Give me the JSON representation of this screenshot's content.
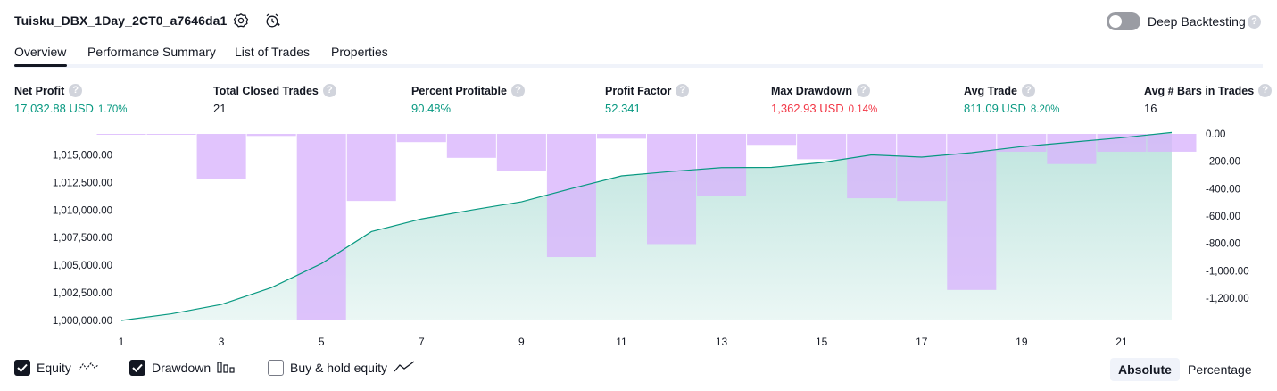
{
  "header": {
    "strategy_title": "Tuisku_DBX_1Day_2CT0_a7646da1",
    "deep_backtesting_label": "Deep Backtesting",
    "help_glyph": "?"
  },
  "tabs": [
    {
      "label": "Overview",
      "active": true
    },
    {
      "label": "Performance Summary",
      "active": false
    },
    {
      "label": "List of Trades",
      "active": false
    },
    {
      "label": "Properties",
      "active": false
    }
  ],
  "metrics": [
    {
      "label": "Net Profit",
      "value": "17,032.88 USD",
      "pct": "1.70%",
      "color": "#089981"
    },
    {
      "label": "Total Closed Trades",
      "value": "21",
      "pct": "",
      "color": "#131722"
    },
    {
      "label": "Percent Profitable",
      "value": "90.48%",
      "pct": "",
      "color": "#089981"
    },
    {
      "label": "Profit Factor",
      "value": "52.341",
      "pct": "",
      "color": "#089981"
    },
    {
      "label": "Max Drawdown",
      "value": "1,362.93 USD",
      "pct": "0.14%",
      "color": "#f23645"
    },
    {
      "label": "Avg Trade",
      "value": "811.09 USD",
      "pct": "8.20%",
      "color": "#089981"
    },
    {
      "label": "Avg # Bars in Trades",
      "value": "16",
      "pct": "",
      "color": "#131722"
    }
  ],
  "chart_data": {
    "type": "line",
    "x": [
      1,
      2,
      3,
      4,
      5,
      6,
      7,
      8,
      9,
      10,
      11,
      12,
      13,
      14,
      15,
      16,
      17,
      18,
      19,
      20,
      21,
      22
    ],
    "x_tick_labels": [
      "1",
      "3",
      "5",
      "7",
      "9",
      "11",
      "13",
      "15",
      "17",
      "19",
      "21"
    ],
    "series": [
      {
        "name": "Equity",
        "axis": "left",
        "color": "#089981",
        "values": [
          1000000,
          1000600,
          1001450,
          1002980,
          1005150,
          1008050,
          1009200,
          1010000,
          1010750,
          1011950,
          1013100,
          1013500,
          1013850,
          1013870,
          1014300,
          1015000,
          1014800,
          1015200,
          1015750,
          1016150,
          1016550,
          1017032.88
        ]
      },
      {
        "name": "Drawdown",
        "axis": "right",
        "type": "bar",
        "color": "#d9b3fc",
        "values": [
          -5,
          -5,
          -330,
          -15,
          -1362.93,
          -490,
          -60,
          -175,
          -270,
          -900,
          -35,
          -805,
          -450,
          -80,
          -185,
          -470,
          -490,
          -1140,
          -130,
          -220,
          -130,
          -130
        ]
      }
    ],
    "left_axis": {
      "tick_labels": [
        "1,015,000.00",
        "1,012,500.00",
        "1,010,000.00",
        "1,007,500.00",
        "1,005,000.00",
        "1,002,500.00",
        "1,000,000.00"
      ],
      "tick_values": [
        1015000,
        1012500,
        1010000,
        1007500,
        1005000,
        1002500,
        1000000
      ],
      "ylim": [
        1000000,
        1016900
      ]
    },
    "right_axis": {
      "tick_labels": [
        "0.00",
        "-200.00",
        "-400.00",
        "-600.00",
        "-800.00",
        "-1,000.00",
        "-1,200.00"
      ],
      "tick_values": [
        0,
        -200,
        -400,
        -600,
        -800,
        -1000,
        -1200
      ],
      "ylim": [
        -1362.93,
        0
      ]
    }
  },
  "footer": {
    "equity_label": "Equity",
    "drawdown_label": "Drawdown",
    "buy_hold_label": "Buy & hold equity",
    "absolute_label": "Absolute",
    "percentage_label": "Percentage"
  }
}
